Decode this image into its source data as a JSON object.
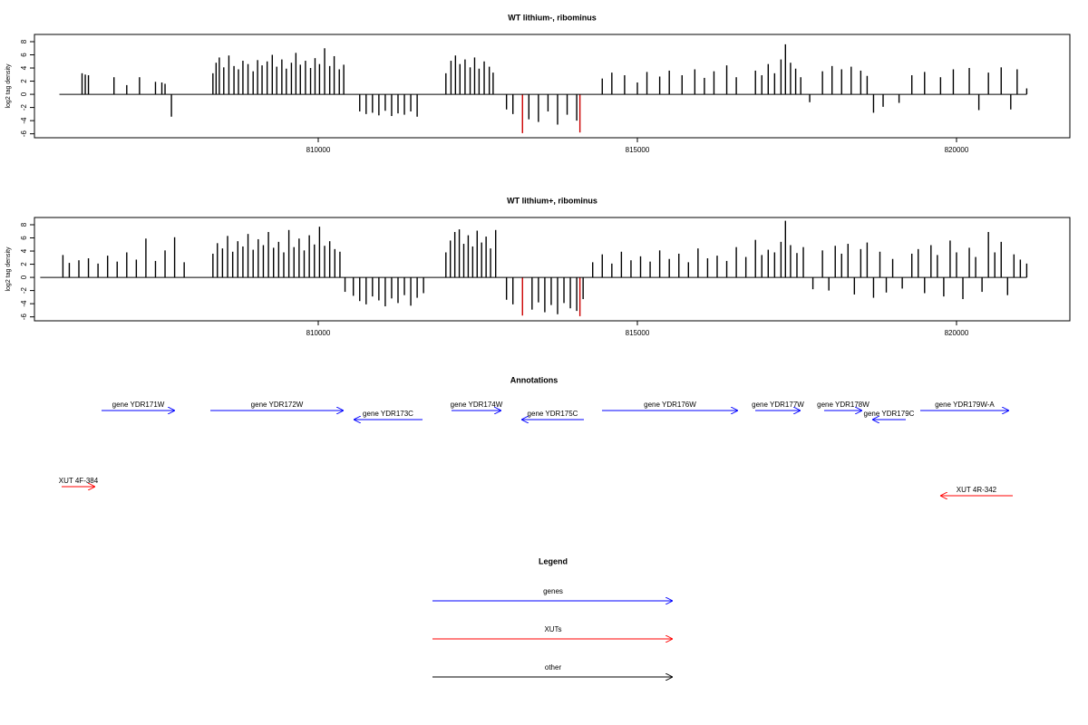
{
  "chart_data": [
    {
      "type": "bar",
      "title": "WT lithium-, ribominus",
      "ylabel": "log2 tag density",
      "xlim": [
        805554,
        821776
      ],
      "ylim": [
        -6.6,
        9.1
      ],
      "xticks": [
        810000,
        815000,
        820000
      ],
      "yticks": [
        -6,
        -4,
        -2,
        0,
        2,
        4,
        6,
        8
      ],
      "series": [
        {
          "color": "#000000",
          "x": [
            806300,
            806350,
            806400,
            806800,
            807000,
            807200,
            807450,
            807550,
            807600,
            807700,
            808350,
            808400,
            808450,
            808520,
            808600,
            808680,
            808750,
            808820,
            808900,
            808980,
            809050,
            809120,
            809200,
            809280,
            809350,
            809430,
            809500,
            809580,
            809650,
            809720,
            809800,
            809880,
            809950,
            810020,
            810100,
            810180,
            810250,
            810330,
            810400,
            810650,
            810750,
            810850,
            810950,
            811050,
            811150,
            811250,
            811350,
            811450,
            811550,
            812000,
            812080,
            812150,
            812220,
            812300,
            812380,
            812450,
            812520,
            812600,
            812680,
            812740,
            812950,
            813050,
            813300,
            813450,
            813600,
            813750,
            813900,
            814050,
            814450,
            814600,
            814800,
            815000,
            815150,
            815350,
            815500,
            815700,
            815900,
            816050,
            816200,
            816400,
            816550,
            816850,
            816950,
            817050,
            817150,
            817250,
            817320,
            817400,
            817480,
            817560,
            817700,
            817900,
            818050,
            818200,
            818350,
            818500,
            818600,
            818700,
            818850,
            819100,
            819300,
            819500,
            819750,
            819950,
            820200,
            820350,
            820500,
            820700,
            820850,
            820950,
            821100
          ],
          "values": [
            3.2,
            3.0,
            2.9,
            2.6,
            1.4,
            2.6,
            1.9,
            1.8,
            1.6,
            -3.4,
            3.2,
            4.8,
            5.6,
            4.1,
            5.9,
            4.3,
            3.8,
            5.1,
            4.6,
            3.5,
            5.2,
            4.4,
            5.0,
            6.0,
            4.2,
            5.3,
            3.9,
            4.8,
            6.3,
            4.5,
            5.1,
            4.0,
            5.5,
            4.6,
            7.0,
            4.3,
            5.8,
            3.8,
            4.5,
            -2.6,
            -3.0,
            -2.8,
            -3.2,
            -2.5,
            -3.3,
            -2.9,
            -3.1,
            -2.6,
            -3.4,
            3.2,
            5.1,
            5.9,
            4.6,
            5.3,
            4.1,
            5.6,
            3.9,
            5.0,
            4.2,
            3.3,
            -2.3,
            -3.0,
            -3.8,
            -4.2,
            -2.6,
            -4.6,
            -3.1,
            -4.0,
            2.4,
            3.3,
            2.9,
            1.8,
            3.4,
            2.7,
            3.6,
            2.9,
            3.8,
            2.5,
            3.5,
            4.4,
            2.6,
            3.6,
            2.9,
            4.6,
            3.2,
            5.3,
            7.6,
            4.8,
            3.9,
            2.6,
            -1.2,
            3.5,
            4.3,
            3.8,
            4.2,
            3.6,
            2.8,
            -2.8,
            -1.9,
            -1.3,
            2.9,
            3.4,
            2.6,
            3.8,
            4.0,
            -2.4,
            3.3,
            4.1,
            -2.3,
            3.8,
            0.9
          ]
        },
        {
          "color": "#cc0000",
          "x": [
            813200,
            814100
          ],
          "values": [
            -5.9,
            -5.8
          ]
        }
      ]
    },
    {
      "type": "bar",
      "title": "WT lithium+, ribominus",
      "ylabel": "log2 tag density",
      "xlim": [
        805554,
        821776
      ],
      "ylim": [
        -6.6,
        9.1
      ],
      "xticks": [
        810000,
        815000,
        820000
      ],
      "yticks": [
        -6,
        -4,
        -2,
        0,
        2,
        4,
        6,
        8
      ],
      "series": [
        {
          "color": "#000000",
          "x": [
            806000,
            806100,
            806250,
            806400,
            806550,
            806700,
            806850,
            807000,
            807150,
            807300,
            807450,
            807600,
            807750,
            807900,
            808350,
            808420,
            808500,
            808580,
            808660,
            808740,
            808820,
            808900,
            808980,
            809060,
            809140,
            809220,
            809300,
            809380,
            809460,
            809540,
            809620,
            809700,
            809780,
            809860,
            809940,
            810020,
            810100,
            810180,
            810260,
            810340,
            810420,
            810550,
            810650,
            810750,
            810850,
            810950,
            811050,
            811150,
            811250,
            811350,
            811450,
            811550,
            811650,
            812000,
            812070,
            812140,
            812210,
            812280,
            812350,
            812420,
            812490,
            812560,
            812630,
            812700,
            812780,
            812950,
            813050,
            813350,
            813450,
            813550,
            813650,
            813750,
            813850,
            813950,
            814050,
            814150,
            814300,
            814450,
            814600,
            814750,
            814900,
            815050,
            815200,
            815350,
            815500,
            815650,
            815800,
            815950,
            816100,
            816250,
            816400,
            816550,
            816700,
            816850,
            816950,
            817050,
            817150,
            817250,
            817320,
            817400,
            817500,
            817600,
            817750,
            817900,
            818000,
            818100,
            818200,
            818300,
            818400,
            818500,
            818600,
            818700,
            818800,
            818900,
            819000,
            819150,
            819300,
            819400,
            819500,
            819600,
            819700,
            819800,
            819900,
            820000,
            820100,
            820200,
            820300,
            820400,
            820500,
            820600,
            820700,
            820800,
            820900,
            821000,
            821100
          ],
          "values": [
            3.4,
            2.2,
            2.6,
            2.9,
            2.1,
            3.3,
            2.4,
            3.8,
            2.7,
            5.9,
            2.5,
            4.1,
            6.1,
            2.3,
            3.6,
            5.2,
            4.4,
            6.3,
            3.9,
            5.5,
            4.7,
            6.6,
            4.2,
            5.8,
            4.9,
            6.9,
            4.5,
            5.4,
            3.8,
            7.2,
            4.6,
            5.9,
            4.1,
            6.4,
            5.0,
            7.7,
            4.8,
            5.5,
            4.3,
            3.9,
            -2.2,
            -2.8,
            -3.6,
            -4.1,
            -2.9,
            -3.5,
            -4.4,
            -3.2,
            -3.9,
            -2.7,
            -4.3,
            -3.1,
            -2.4,
            3.8,
            5.6,
            6.9,
            7.3,
            5.1,
            6.4,
            4.7,
            7.1,
            5.3,
            6.2,
            4.4,
            7.2,
            -3.4,
            -4.1,
            -4.9,
            -3.8,
            -5.3,
            -4.2,
            -5.6,
            -3.9,
            -4.7,
            -5.1,
            -3.3,
            2.3,
            3.5,
            2.1,
            3.9,
            2.6,
            3.2,
            2.4,
            4.1,
            2.8,
            3.6,
            2.3,
            4.4,
            2.9,
            3.3,
            2.5,
            4.6,
            3.1,
            5.7,
            3.4,
            4.2,
            3.8,
            5.4,
            8.6,
            4.9,
            3.7,
            4.6,
            -1.8,
            4.1,
            -2.0,
            4.8,
            3.6,
            5.1,
            -2.6,
            4.3,
            5.3,
            -3.1,
            3.9,
            -2.3,
            2.8,
            -1.7,
            3.6,
            4.3,
            -2.4,
            4.9,
            3.4,
            -2.9,
            5.6,
            3.8,
            -3.3,
            4.5,
            3.1,
            -2.2,
            6.9,
            3.8,
            5.4,
            -2.7,
            3.5,
            2.7,
            2.1
          ]
        },
        {
          "color": "#cc0000",
          "x": [
            813200,
            814100
          ],
          "values": [
            -5.8,
            -5.9
          ]
        }
      ]
    }
  ],
  "annotations": {
    "title": "Annotations",
    "features": [
      {
        "label": "gene YDR171W",
        "start": 806605,
        "end": 807756,
        "color": "#0000ff"
      },
      {
        "label": "gene YDR172W",
        "start": 808310,
        "end": 810398,
        "color": "#0000ff"
      },
      {
        "label": "gene YDR173C",
        "start": 811634,
        "end": 810554,
        "color": "#0000ff"
      },
      {
        "label": "gene YDR174W",
        "start": 812088,
        "end": 812869,
        "color": "#0000ff"
      },
      {
        "label": "gene YDR175C",
        "start": 814162,
        "end": 813182,
        "color": "#0000ff"
      },
      {
        "label": "gene YDR176W",
        "start": 814446,
        "end": 816577,
        "color": "#0000ff"
      },
      {
        "label": "gene YDR177W",
        "start": 816847,
        "end": 817557,
        "color": "#0000ff"
      },
      {
        "label": "gene YDR178W",
        "start": 817926,
        "end": 818523,
        "color": "#0000ff"
      },
      {
        "label": "gene YDR179C",
        "start": 819205,
        "end": 818679,
        "color": "#0000ff"
      },
      {
        "label": "gene YDR179W-A",
        "start": 819432,
        "end": 820824,
        "color": "#0000ff"
      },
      {
        "label": "XUT 4F-384",
        "start": 805980,
        "end": 806506,
        "color": "#ff0000",
        "kind": "xut"
      },
      {
        "label": "XUT 4R-342",
        "start": 820881,
        "end": 819744,
        "color": "#ff0000",
        "kind": "xut"
      }
    ]
  },
  "legend": {
    "title": "Legend",
    "items": [
      {
        "label": "genes",
        "color": "#0000ff"
      },
      {
        "label": "XUTs",
        "color": "#ff0000"
      },
      {
        "label": "other",
        "color": "#000000"
      }
    ]
  }
}
